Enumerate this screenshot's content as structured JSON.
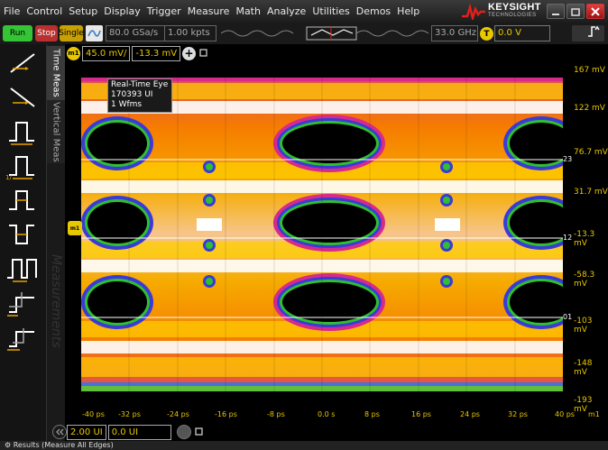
{
  "menu": [
    "File",
    "Control",
    "Setup",
    "Display",
    "Trigger",
    "Measure",
    "Math",
    "Analyze",
    "Utilities",
    "Demos",
    "Help"
  ],
  "brand": {
    "name": "KEYSIGHT",
    "sub": "TECHNOLOGIES",
    "accent": "#e0201c"
  },
  "toolbar": {
    "run_label": "Run",
    "stop_label": "Stop",
    "single_label": "Single",
    "sample_rate": "80.0 GSa/s",
    "record_length": "1.00 kpts",
    "bandwidth": "33.0 GHz",
    "trigger_badge": "T",
    "trigger_level": "0.0 V"
  },
  "side_tabs": {
    "time": "Time Meas",
    "vertical": "Vertical Meas",
    "measurements_ghost": "Measurements"
  },
  "scale": {
    "badge": "m1",
    "volts_per_div": "45.0 mV/",
    "offset": "-13.3 mV"
  },
  "info": {
    "line1": "Real-Time Eye",
    "line2": "170393 UI",
    "line3": "1 Wfms"
  },
  "y_labels": [
    "167 mV",
    "122 mV",
    "76.7 mV",
    "31.7 mV",
    "-13.3 mV",
    "-58.3 mV",
    "-103 mV",
    "-148 mV",
    "-193 mV"
  ],
  "x_labels": [
    "-40 ps",
    "-32 ps",
    "-24 ps",
    "-16 ps",
    "-8 ps",
    "0.0 s",
    "8 ps",
    "16 ps",
    "24 ps",
    "32 ps",
    "40 ps"
  ],
  "x_channel": "m1",
  "grid_tags": [
    "23",
    "12",
    "01"
  ],
  "marker": "m1",
  "bottom": {
    "timebase": "2.00 UI",
    "position": "0.0 UI"
  },
  "results": {
    "label": "Results",
    "mode": "(Measure All Edges)"
  },
  "colors": {
    "yellow": "#e8c800",
    "run": "#35c435",
    "stop": "#b83030",
    "single": "#c8a000"
  }
}
